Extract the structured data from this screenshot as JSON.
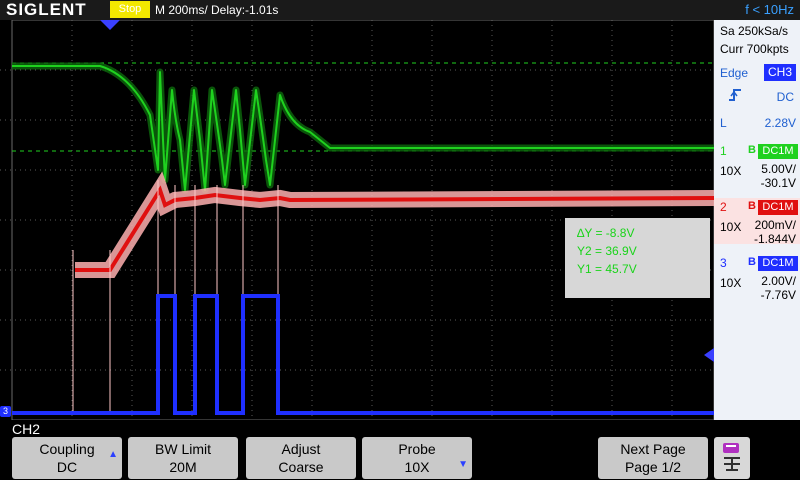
{
  "header": {
    "brand": "SIGLENT",
    "status": "Stop",
    "timebase": "M 200ms/  Delay:-1.01s",
    "frequency": "f < 10Hz"
  },
  "acquisition": {
    "sample_rate": "Sa 250kSa/s",
    "memory": "Curr 700kpts"
  },
  "trigger": {
    "type": "Edge",
    "source": "CH3",
    "slope_icon": "rising-edge-icon",
    "coupling": "DC",
    "level_label": "L",
    "level": "2.28V"
  },
  "channels": [
    {
      "num": "1",
      "bw": "B",
      "coupling": "DC1M",
      "probe": "10X",
      "vdiv": "5.00V/",
      "offset": "-30.1V",
      "color": "#1fd11f"
    },
    {
      "num": "2",
      "bw": "B",
      "coupling": "DC1M",
      "probe": "10X",
      "vdiv": "200mV/",
      "offset": "-1.844V",
      "color": "#e01010"
    },
    {
      "num": "3",
      "bw": "B",
      "coupling": "DC1M",
      "probe": "10X",
      "vdiv": "2.00V/",
      "offset": "-7.76V",
      "color": "#1f2fff"
    }
  ],
  "cursor": {
    "delta": "∆Y = -8.8V",
    "y2": "Y2 = 36.9V",
    "y1": "Y1 = 45.7V"
  },
  "menu": {
    "channel": "CH2",
    "keys": [
      {
        "line1": "Coupling",
        "line2": "DC"
      },
      {
        "line1": "BW Limit",
        "line2": "20M"
      },
      {
        "line1": "Adjust",
        "line2": "Coarse"
      },
      {
        "line1": "Probe",
        "line2": "10X"
      },
      {
        "line1": "Next Page",
        "line2": "Page 1/2"
      }
    ],
    "page_icon": "menu-page-icon"
  },
  "markers": {
    "ch3_ground": "3"
  }
}
